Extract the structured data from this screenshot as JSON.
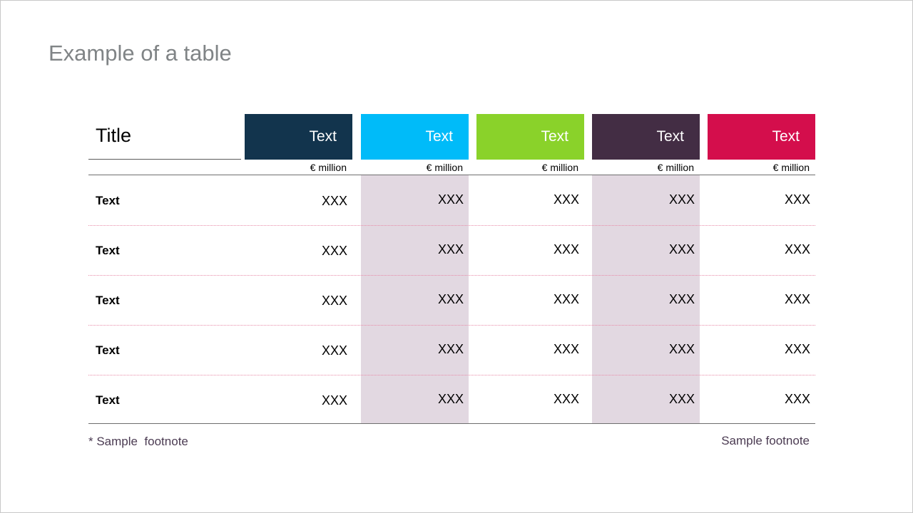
{
  "slide": {
    "title": "Example of a table"
  },
  "table": {
    "title": "Title",
    "columns": [
      {
        "label": "Text",
        "unit": "€ million",
        "color": "#12344d"
      },
      {
        "label": "Text",
        "unit": "€ million",
        "color": "#00bbf9"
      },
      {
        "label": "Text",
        "unit": "€ million",
        "color": "#8ad22a"
      },
      {
        "label": "Text",
        "unit": "€ million",
        "color": "#432d44"
      },
      {
        "label": "Text",
        "unit": "€ million",
        "color": "#d40e4c"
      }
    ],
    "rows": [
      {
        "label": "Text",
        "values": [
          "XXX",
          "XXX",
          "XXX",
          "XXX",
          "XXX"
        ]
      },
      {
        "label": "Text",
        "values": [
          "XXX",
          "XXX",
          "XXX",
          "XXX",
          "XXX"
        ]
      },
      {
        "label": "Text",
        "values": [
          "XXX",
          "XXX",
          "XXX",
          "XXX",
          "XXX"
        ]
      },
      {
        "label": "Text",
        "values": [
          "XXX",
          "XXX",
          "XXX",
          "XXX",
          "XXX"
        ]
      },
      {
        "label": "Text",
        "values": [
          "XXX",
          "XXX",
          "XXX",
          "XXX",
          "XXX"
        ]
      }
    ],
    "shaded_column_color": "#e2d8e1",
    "separator_color": "#e88aa8"
  },
  "footnotes": {
    "left": "* Sample  footnote",
    "right": "Sample footnote"
  }
}
